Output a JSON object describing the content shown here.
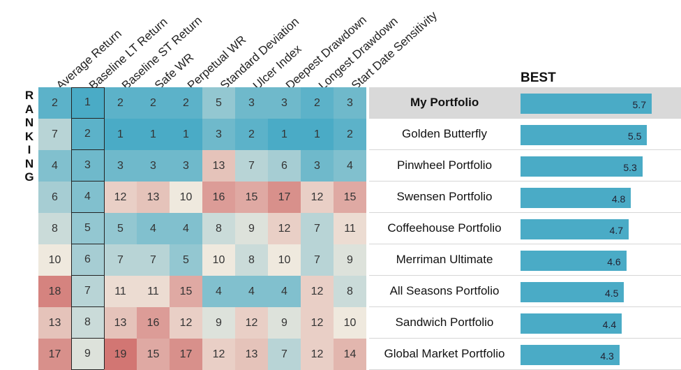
{
  "ranking_label": "RANKING",
  "best_label": "BEST",
  "chart_data": {
    "type": "heatmap",
    "columns": [
      "Average Return",
      "Baseline LT Return",
      "Baseline ST Return",
      "Safe WR",
      "Perpetual WR",
      "Standard Deviation",
      "Ulcer Index",
      "Deepest Drawdown",
      "Longest Drawdown",
      "Start Date Sensitivity"
    ],
    "rows": [
      {
        "name": "My Portfolio",
        "ranks": [
          2,
          1,
          2,
          2,
          2,
          5,
          3,
          3,
          2,
          3
        ],
        "score": 5.7,
        "highlight": true
      },
      {
        "name": "Golden Butterfly",
        "ranks": [
          7,
          2,
          1,
          1,
          1,
          3,
          2,
          1,
          1,
          2
        ],
        "score": 5.5
      },
      {
        "name": "Pinwheel Portfolio",
        "ranks": [
          4,
          3,
          3,
          3,
          3,
          13,
          7,
          6,
          3,
          4
        ],
        "score": 5.3
      },
      {
        "name": "Swensen Portfolio",
        "ranks": [
          6,
          4,
          12,
          13,
          10,
          16,
          15,
          17,
          12,
          15
        ],
        "score": 4.8
      },
      {
        "name": "Coffeehouse Portfolio",
        "ranks": [
          8,
          5,
          5,
          4,
          4,
          8,
          9,
          12,
          7,
          11
        ],
        "score": 4.7
      },
      {
        "name": "Merriman Ultimate",
        "ranks": [
          10,
          6,
          7,
          7,
          5,
          10,
          8,
          10,
          7,
          9
        ],
        "score": 4.6
      },
      {
        "name": "All Seasons Portfolio",
        "ranks": [
          18,
          7,
          11,
          11,
          15,
          4,
          4,
          4,
          12,
          8
        ],
        "score": 4.5
      },
      {
        "name": "Sandwich Portfolio",
        "ranks": [
          13,
          8,
          13,
          16,
          12,
          9,
          12,
          9,
          12,
          10
        ],
        "score": 4.4
      },
      {
        "name": "Global Market Portfolio",
        "ranks": [
          17,
          9,
          19,
          15,
          17,
          12,
          13,
          7,
          12,
          14
        ],
        "score": 4.3
      }
    ],
    "rank_range": [
      1,
      19
    ],
    "score_range": [
      0,
      5.7
    ],
    "colors": {
      "best": "#4aabc6",
      "mid": "#efe9de",
      "worst": "#d27673",
      "bar": "#4aabc6",
      "highlight_row": "#d9d9d9"
    }
  }
}
